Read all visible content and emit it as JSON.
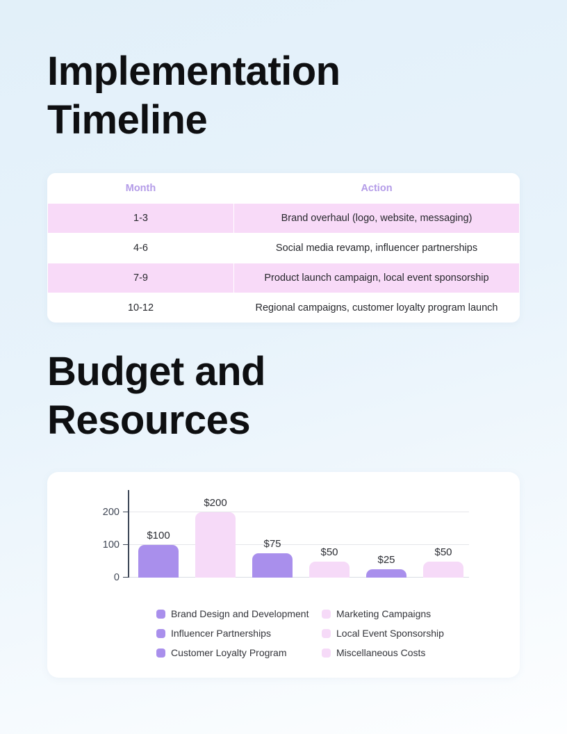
{
  "page": {
    "background_top_color": "#e2f0f9",
    "background_bottom_color": "#fdfeff"
  },
  "sections": {
    "timeline": {
      "title": "Implementation Timeline",
      "table": {
        "columns": [
          "Month",
          "Action"
        ],
        "rows": [
          {
            "month": "1-3",
            "action": "Brand overhaul (logo, website, messaging)"
          },
          {
            "month": "4-6",
            "action": "Social media revamp, influencer partnerships"
          },
          {
            "month": "7-9",
            "action": "Product launch campaign, local event sponsorship"
          },
          {
            "month": "10-12",
            "action": "Regional campaigns, customer loyalty program launch"
          }
        ],
        "row_highlight_color": "#f8daf8",
        "header_text_color": "#b49ce8"
      }
    },
    "budget": {
      "title": "Budget and Resources"
    }
  },
  "chart_data": {
    "type": "bar",
    "title": "",
    "xlabel": "",
    "ylabel": "",
    "categories": [
      "Brand Design and Development",
      "Marketing Campaigns",
      "Influencer Partnerships",
      "Local Event Sponsorship",
      "Customer Loyalty Program",
      "Miscellaneous Costs"
    ],
    "values": [
      100,
      200,
      75,
      50,
      25,
      50
    ],
    "bar_labels": [
      "$100",
      "$200",
      "$75",
      "$50",
      "$25",
      "$50"
    ],
    "bar_colors": [
      "#a98fec",
      "#f6daf8",
      "#a98fec",
      "#f6daf8",
      "#a98fec",
      "#f6daf8"
    ],
    "yticks": [
      0,
      100,
      200
    ],
    "ylim": [
      0,
      268
    ],
    "grid": true,
    "legend_position": "bottom",
    "legend": [
      {
        "label": "Brand Design and Development",
        "color": "#a98fec"
      },
      {
        "label": "Marketing Campaigns",
        "color": "#f6daf8"
      },
      {
        "label": "Influencer Partnerships",
        "color": "#a98fec"
      },
      {
        "label": "Local Event Sponsorship",
        "color": "#f6daf8"
      },
      {
        "label": "Customer Loyalty Program",
        "color": "#a98fec"
      },
      {
        "label": "Miscellaneous Costs",
        "color": "#f6daf8"
      }
    ],
    "accent_purple": "#a98fec",
    "accent_pink": "#f6daf8"
  }
}
